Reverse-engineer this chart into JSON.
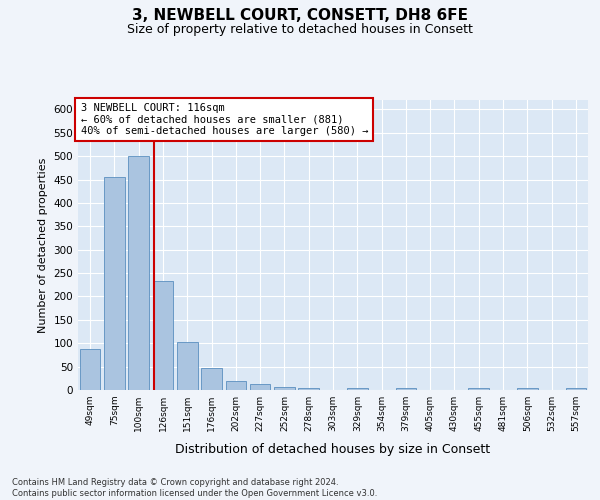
{
  "title": "3, NEWBELL COURT, CONSETT, DH8 6FE",
  "subtitle": "Size of property relative to detached houses in Consett",
  "xlabel": "Distribution of detached houses by size in Consett",
  "ylabel": "Number of detached properties",
  "categories": [
    "49sqm",
    "75sqm",
    "100sqm",
    "126sqm",
    "151sqm",
    "176sqm",
    "202sqm",
    "227sqm",
    "252sqm",
    "278sqm",
    "303sqm",
    "329sqm",
    "354sqm",
    "379sqm",
    "405sqm",
    "430sqm",
    "455sqm",
    "481sqm",
    "506sqm",
    "532sqm",
    "557sqm"
  ],
  "values": [
    88,
    456,
    500,
    234,
    103,
    47,
    19,
    12,
    7,
    4,
    0,
    4,
    0,
    4,
    0,
    0,
    4,
    0,
    4,
    0,
    4
  ],
  "bar_color": "#aac4e0",
  "bar_edge_color": "#5a8fc0",
  "vline_color": "#cc0000",
  "annotation_text": "3 NEWBELL COURT: 116sqm\n← 60% of detached houses are smaller (881)\n40% of semi-detached houses are larger (580) →",
  "annotation_box_color": "#ffffff",
  "annotation_box_edge_color": "#cc0000",
  "ylim": [
    0,
    620
  ],
  "yticks": [
    0,
    50,
    100,
    150,
    200,
    250,
    300,
    350,
    400,
    450,
    500,
    550,
    600
  ],
  "footer_text": "Contains HM Land Registry data © Crown copyright and database right 2024.\nContains public sector information licensed under the Open Government Licence v3.0.",
  "background_color": "#dce8f5",
  "grid_color": "#ffffff",
  "fig_background": "#f0f4fa",
  "title_fontsize": 11,
  "subtitle_fontsize": 9,
  "xlabel_fontsize": 9,
  "ylabel_fontsize": 8
}
